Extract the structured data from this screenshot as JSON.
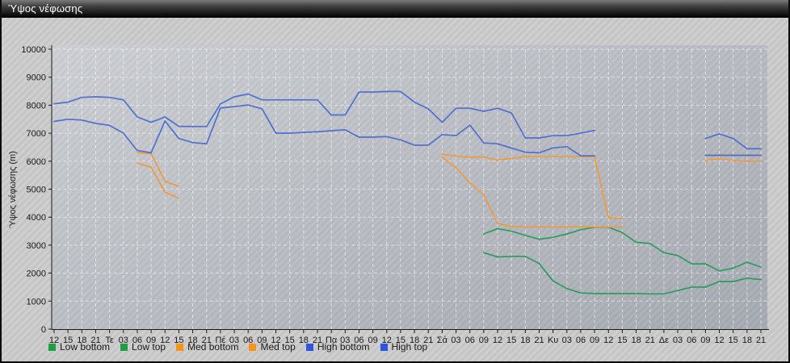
{
  "window": {
    "title": "Ύψος νέφωσης"
  },
  "chart_data": {
    "type": "line",
    "title": "Ύψος νέφωσης",
    "ylabel": "Ύψος νέφωσης (m)",
    "xlabel": "",
    "ylim": [
      0,
      10000
    ],
    "y_ticks": [
      0,
      1000,
      2000,
      3000,
      4000,
      5000,
      6000,
      7000,
      8000,
      9000,
      10000
    ],
    "x_ticks": [
      "12",
      "15",
      "18",
      "21",
      "Τε",
      "03",
      "06",
      "09",
      "12",
      "15",
      "18",
      "21",
      "Πέ",
      "03",
      "06",
      "09",
      "12",
      "15",
      "18",
      "21",
      "Πα",
      "03",
      "06",
      "09",
      "12",
      "15",
      "18",
      "21",
      "Σά",
      "03",
      "06",
      "09",
      "12",
      "15",
      "18",
      "21",
      "Κυ",
      "03",
      "06",
      "09",
      "12",
      "15",
      "18",
      "21",
      "Δε",
      "03",
      "06",
      "09",
      "12",
      "15",
      "18",
      "21"
    ],
    "grid": "dashed-white-on-gray",
    "legend_position": "bottom-left",
    "series": [
      {
        "name": "Low bottom",
        "line_color": "#2e9b5e",
        "legend_color": "#1f9e42",
        "points": [
          [
            31,
            2730
          ],
          [
            32,
            2580
          ],
          [
            33,
            2600
          ],
          [
            34,
            2600
          ],
          [
            35,
            2340
          ],
          [
            36,
            1720
          ],
          [
            37,
            1450
          ],
          [
            38,
            1290
          ],
          [
            39,
            1270
          ],
          [
            40,
            1270
          ],
          [
            41,
            1270
          ],
          [
            42,
            1270
          ],
          [
            43,
            1260
          ],
          [
            44,
            1260
          ],
          [
            45,
            1380
          ],
          [
            46,
            1500
          ],
          [
            47,
            1500
          ],
          [
            48,
            1700
          ],
          [
            49,
            1700
          ],
          [
            50,
            1820
          ],
          [
            51,
            1770
          ]
        ]
      },
      {
        "name": "Low top",
        "line_color": "#2e9b5e",
        "legend_color": "#1f9e42",
        "points": [
          [
            31,
            3400
          ],
          [
            32,
            3590
          ],
          [
            33,
            3500
          ],
          [
            34,
            3350
          ],
          [
            35,
            3210
          ],
          [
            36,
            3280
          ],
          [
            37,
            3400
          ],
          [
            38,
            3550
          ],
          [
            39,
            3640
          ],
          [
            40,
            3640
          ],
          [
            41,
            3450
          ],
          [
            42,
            3100
          ],
          [
            43,
            3060
          ],
          [
            44,
            2730
          ],
          [
            45,
            2630
          ],
          [
            46,
            2330
          ],
          [
            47,
            2330
          ],
          [
            48,
            2080
          ],
          [
            49,
            2180
          ],
          [
            50,
            2390
          ],
          [
            51,
            2220
          ]
        ]
      },
      {
        "name": "Med bottom",
        "line_color": "#f09a3f",
        "legend_color": "#ff9517",
        "points": [
          [
            6,
            5930
          ],
          [
            7,
            5780
          ],
          [
            8,
            4890
          ],
          [
            9,
            4680
          ],
          [
            28,
            6140
          ],
          [
            29,
            5760
          ],
          [
            30,
            5230
          ],
          [
            31,
            4790
          ],
          [
            32,
            3780
          ],
          [
            33,
            3660
          ],
          [
            34,
            3650
          ],
          [
            35,
            3650
          ],
          [
            36,
            3650
          ],
          [
            37,
            3650
          ],
          [
            38,
            3650
          ],
          [
            39,
            3650
          ],
          [
            40,
            3650
          ],
          [
            41,
            3650
          ],
          [
            47,
            6030
          ],
          [
            48,
            6090
          ],
          [
            49,
            6030
          ],
          [
            50,
            6000
          ],
          [
            51,
            6000
          ]
        ]
      },
      {
        "name": "Med top",
        "line_color": "#f09a3f",
        "legend_color": "#ff9517",
        "points": [
          [
            6,
            6300
          ],
          [
            7,
            6270
          ],
          [
            8,
            5280
          ],
          [
            9,
            5100
          ],
          [
            28,
            6255
          ],
          [
            29,
            6180
          ],
          [
            30,
            6140
          ],
          [
            31,
            6150
          ],
          [
            32,
            6040
          ],
          [
            33,
            6100
          ],
          [
            34,
            6160
          ],
          [
            35,
            6160
          ],
          [
            36,
            6160
          ],
          [
            37,
            6160
          ],
          [
            38,
            6160
          ],
          [
            39,
            6160
          ],
          [
            40,
            3980
          ],
          [
            41,
            3950
          ],
          [
            47,
            6210
          ],
          [
            48,
            6210
          ],
          [
            49,
            6210
          ],
          [
            50,
            6210
          ],
          [
            51,
            6210
          ]
        ]
      },
      {
        "name": "High bottom",
        "line_color": "#4569cf",
        "legend_color": "#2c55e2",
        "points": [
          [
            0,
            7420
          ],
          [
            1,
            7500
          ],
          [
            2,
            7470
          ],
          [
            3,
            7350
          ],
          [
            4,
            7280
          ],
          [
            5,
            7000
          ],
          [
            6,
            6380
          ],
          [
            7,
            6300
          ],
          [
            8,
            7435
          ],
          [
            9,
            6810
          ],
          [
            10,
            6665
          ],
          [
            11,
            6620
          ],
          [
            12,
            7900
          ],
          [
            13,
            7950
          ],
          [
            14,
            8010
          ],
          [
            15,
            7870
          ],
          [
            16,
            7000
          ],
          [
            17,
            7000
          ],
          [
            18,
            7030
          ],
          [
            19,
            7050
          ],
          [
            20,
            7090
          ],
          [
            21,
            7120
          ],
          [
            22,
            6860
          ],
          [
            23,
            6860
          ],
          [
            24,
            6880
          ],
          [
            25,
            6760
          ],
          [
            26,
            6570
          ],
          [
            27,
            6570
          ],
          [
            28,
            6950
          ],
          [
            29,
            6910
          ],
          [
            30,
            7290
          ],
          [
            31,
            6650
          ],
          [
            32,
            6620
          ],
          [
            33,
            6470
          ],
          [
            34,
            6320
          ],
          [
            35,
            6300
          ],
          [
            36,
            6475
          ],
          [
            37,
            6520
          ],
          [
            38,
            6190
          ],
          [
            39,
            6190
          ],
          [
            47,
            6210
          ],
          [
            48,
            6210
          ],
          [
            49,
            6210
          ],
          [
            50,
            6210
          ],
          [
            51,
            6210
          ]
        ]
      },
      {
        "name": "High top",
        "line_color": "#4569cf",
        "legend_color": "#2c55e2",
        "points": [
          [
            0,
            8050
          ],
          [
            1,
            8110
          ],
          [
            2,
            8280
          ],
          [
            3,
            8300
          ],
          [
            4,
            8280
          ],
          [
            5,
            8190
          ],
          [
            6,
            7580
          ],
          [
            7,
            7390
          ],
          [
            8,
            7580
          ],
          [
            9,
            7245
          ],
          [
            10,
            7240
          ],
          [
            11,
            7240
          ],
          [
            12,
            8050
          ],
          [
            13,
            8300
          ],
          [
            14,
            8400
          ],
          [
            15,
            8190
          ],
          [
            16,
            8190
          ],
          [
            17,
            8190
          ],
          [
            18,
            8190
          ],
          [
            19,
            8190
          ],
          [
            20,
            7650
          ],
          [
            21,
            7650
          ],
          [
            22,
            8470
          ],
          [
            23,
            8470
          ],
          [
            24,
            8490
          ],
          [
            25,
            8490
          ],
          [
            26,
            8110
          ],
          [
            27,
            7870
          ],
          [
            28,
            7390
          ],
          [
            29,
            7890
          ],
          [
            30,
            7890
          ],
          [
            31,
            7780
          ],
          [
            32,
            7890
          ],
          [
            33,
            7720
          ],
          [
            34,
            6830
          ],
          [
            35,
            6830
          ],
          [
            36,
            6910
          ],
          [
            37,
            6910
          ],
          [
            38,
            7000
          ],
          [
            39,
            7100
          ],
          [
            47,
            6810
          ],
          [
            48,
            6975
          ],
          [
            49,
            6810
          ],
          [
            50,
            6445
          ],
          [
            51,
            6445
          ]
        ]
      }
    ]
  }
}
